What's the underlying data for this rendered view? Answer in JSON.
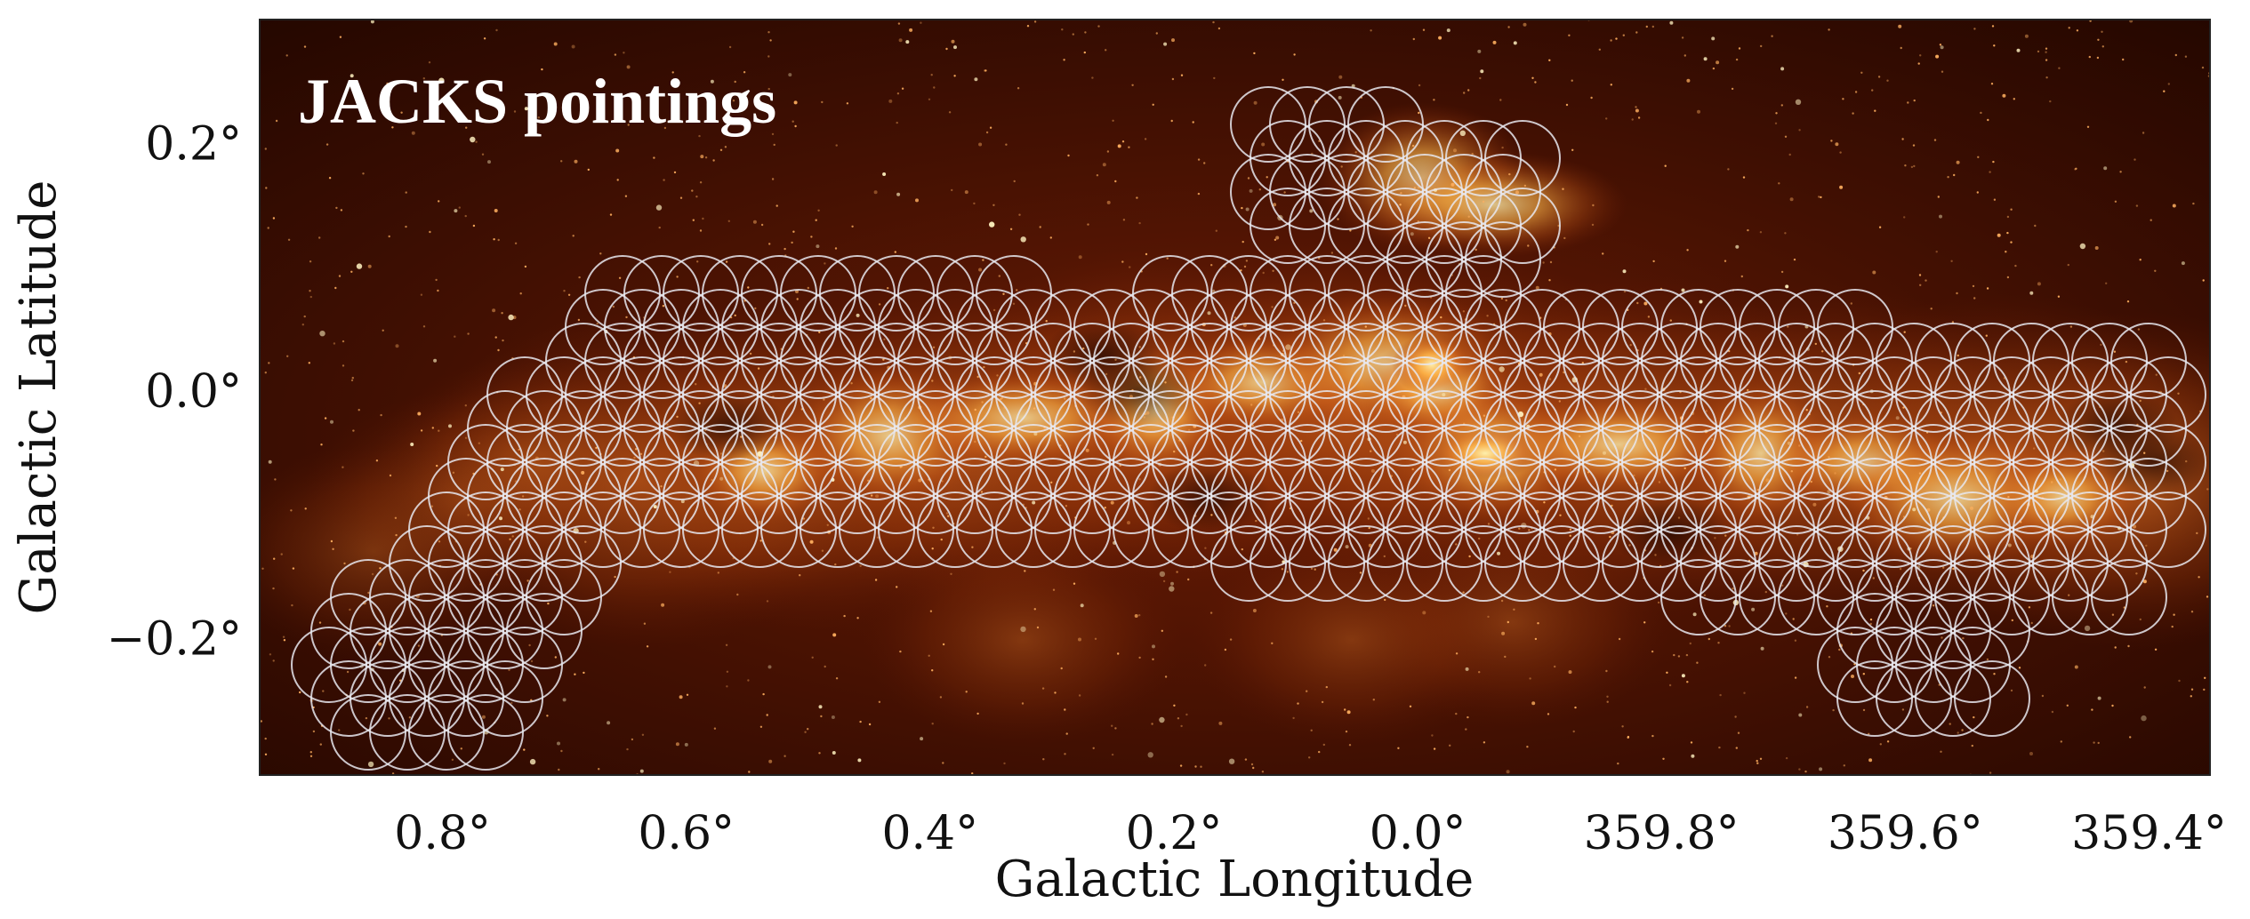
{
  "figure": {
    "title": "JACKS pointings",
    "xlabel": "Galactic Longitude",
    "ylabel": "Galactic Latitude",
    "x_ticks": [
      "0.8°",
      "0.6°",
      "0.4°",
      "0.2°",
      "0.0°",
      "359.8°",
      "359.6°",
      "359.4°"
    ],
    "y_ticks": [
      "0.2°",
      "0.0°",
      "−0.2°"
    ],
    "x_tick_values": [
      0.8,
      0.6,
      0.4,
      0.2,
      0.0,
      -0.2,
      -0.4,
      -0.6
    ],
    "y_tick_values": [
      0.2,
      0.0,
      -0.2
    ],
    "x_range_deg": [
      0.95,
      -0.65
    ],
    "y_range_deg": [
      0.3,
      -0.31
    ],
    "colors": {
      "background": "#3a0d02",
      "emission_glow": "#ffb04a",
      "pointing_circle": "#e8e8ee",
      "title_text": "#ffffff"
    }
  }
}
